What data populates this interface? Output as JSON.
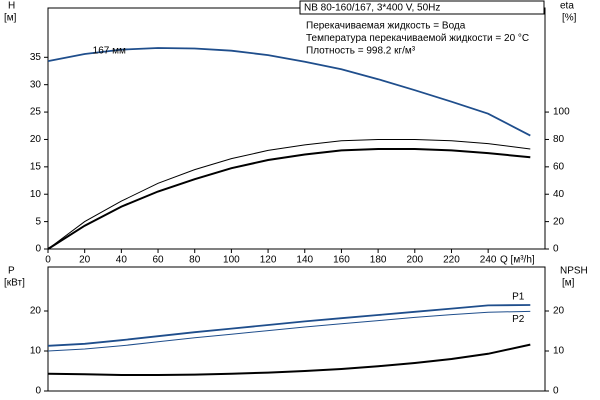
{
  "chart_data": [
    {
      "type": "line",
      "title": "NB 80-160/167, 3*400 V, 50Hz",
      "annotations": [
        "Перекачиваемая жидкость = Вода",
        "Температура перекачиваемой жидкости = 20 °C",
        "Плотность = 998.2 кг/м³"
      ],
      "x_label": "Q [м³/h]",
      "y_label": "H",
      "y_unit": "[м]",
      "y2_label": "eta",
      "y2_unit": "[%]",
      "x": [
        0,
        20,
        40,
        60,
        80,
        100,
        120,
        140,
        160,
        180,
        200,
        220,
        240,
        263
      ],
      "xlim": [
        0,
        271
      ],
      "xticks": [
        0,
        20,
        40,
        60,
        80,
        100,
        120,
        140,
        160,
        180,
        200,
        220,
        240
      ],
      "ylim": [
        0,
        44
      ],
      "yticks": [
        0,
        5,
        10,
        15,
        20,
        25,
        30,
        35
      ],
      "y2lim": [
        0,
        176
      ],
      "y2ticks": [
        0,
        20,
        40,
        60,
        80,
        100
      ],
      "grid": false,
      "series": [
        {
          "name": "167 мм",
          "color": "#1f4e8c",
          "line_width": 1.8,
          "values": [
            34.3,
            35.6,
            36.4,
            36.7,
            36.6,
            36.2,
            35.4,
            34.2,
            32.8,
            31.0,
            29.0,
            26.9,
            24.7,
            20.7
          ]
        },
        {
          "color": "#000000",
          "line_width": 1,
          "axis": "y2",
          "values": [
            0,
            20,
            35,
            48,
            58,
            66,
            72,
            76,
            79,
            80,
            80,
            79,
            77,
            73
          ]
        },
        {
          "color": "#000000",
          "line_width": 2,
          "axis": "y2",
          "values": [
            0,
            17,
            31,
            42,
            51,
            59,
            65,
            69,
            72,
            73,
            73,
            72,
            70,
            67
          ]
        }
      ]
    },
    {
      "type": "line",
      "y_label": "P",
      "y_unit": "[кВт]",
      "y2_label": "NPSH",
      "y2_unit": "[м]",
      "x": [
        0,
        20,
        40,
        60,
        80,
        100,
        120,
        140,
        160,
        180,
        200,
        220,
        240,
        263
      ],
      "xlim": [
        0,
        271
      ],
      "ylim": [
        0,
        31
      ],
      "yticks": [
        0,
        10,
        20
      ],
      "y2lim": [
        0,
        31
      ],
      "y2ticks": [
        0,
        10,
        20
      ],
      "grid": false,
      "series": [
        {
          "name": "P1",
          "color": "#1f4e8c",
          "line_width": 1.8,
          "values": [
            11.3,
            11.8,
            12.7,
            13.7,
            14.7,
            15.6,
            16.5,
            17.4,
            18.2,
            19.0,
            19.8,
            20.6,
            21.4,
            21.5
          ]
        },
        {
          "name": "P2",
          "color": "#1f4e8c",
          "line_width": 1,
          "values": [
            10.0,
            10.5,
            11.3,
            12.3,
            13.3,
            14.2,
            15.1,
            16.0,
            16.8,
            17.6,
            18.4,
            19.1,
            19.7,
            19.9
          ]
        },
        {
          "color": "#000000",
          "line_width": 2,
          "axis": "y2",
          "values": [
            4.3,
            4.2,
            4.0,
            4.0,
            4.1,
            4.3,
            4.6,
            5.0,
            5.5,
            6.2,
            7.0,
            8.0,
            9.3,
            11.6
          ]
        }
      ]
    }
  ]
}
